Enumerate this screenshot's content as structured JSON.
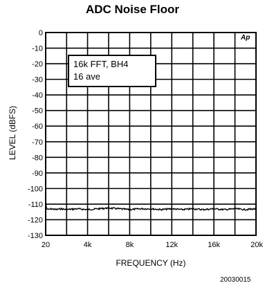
{
  "chart_data": {
    "type": "line",
    "title": "ADC Noise Floor",
    "xlabel": "FREQUENCY (Hz)",
    "ylabel": "LEVEL (dBFS)",
    "xlim": [
      20,
      20000
    ],
    "ylim": [
      -130,
      0
    ],
    "x_ticks": [
      {
        "value": 20,
        "label": "20"
      },
      {
        "value": 4000,
        "label": "4k"
      },
      {
        "value": 8000,
        "label": "8k"
      },
      {
        "value": 12000,
        "label": "12k"
      },
      {
        "value": 16000,
        "label": "16k"
      },
      {
        "value": 20000,
        "label": "20k"
      }
    ],
    "y_ticks": [
      {
        "value": 0,
        "label": "0"
      },
      {
        "value": -10,
        "label": "-10"
      },
      {
        "value": -20,
        "label": "-20"
      },
      {
        "value": -30,
        "label": "-30"
      },
      {
        "value": -40,
        "label": "-40"
      },
      {
        "value": -50,
        "label": "-50"
      },
      {
        "value": -60,
        "label": "-60"
      },
      {
        "value": -70,
        "label": "-70"
      },
      {
        "value": -80,
        "label": "-80"
      },
      {
        "value": -90,
        "label": "-90"
      },
      {
        "value": -100,
        "label": "-100"
      },
      {
        "value": -110,
        "label": "-110"
      },
      {
        "value": -120,
        "label": "-120"
      },
      {
        "value": -130,
        "label": "-130"
      }
    ],
    "grid": true,
    "annotation_lines": [
      "16k FFT, BH4",
      "16 ave"
    ],
    "logo_text": "Ap",
    "series": [
      {
        "x": [
          20,
          60,
          120,
          300,
          600,
          1000,
          1500,
          2000,
          3000,
          4000,
          5000,
          6000,
          7000,
          8000,
          9000,
          10000,
          11000,
          12000,
          13000,
          14000,
          15000,
          16000,
          17000,
          18000,
          19000,
          20000
        ],
        "y": [
          -107,
          -111,
          -113,
          -113.5,
          -113,
          -113.5,
          -113,
          -113.5,
          -113,
          -113.5,
          -113,
          -112.5,
          -113,
          -113.5,
          -113,
          -113,
          -113.5,
          -113,
          -113.5,
          -113,
          -113.5,
          -113,
          -113.5,
          -113,
          -113.5,
          -113
        ]
      }
    ]
  },
  "figure_id": "20030015"
}
